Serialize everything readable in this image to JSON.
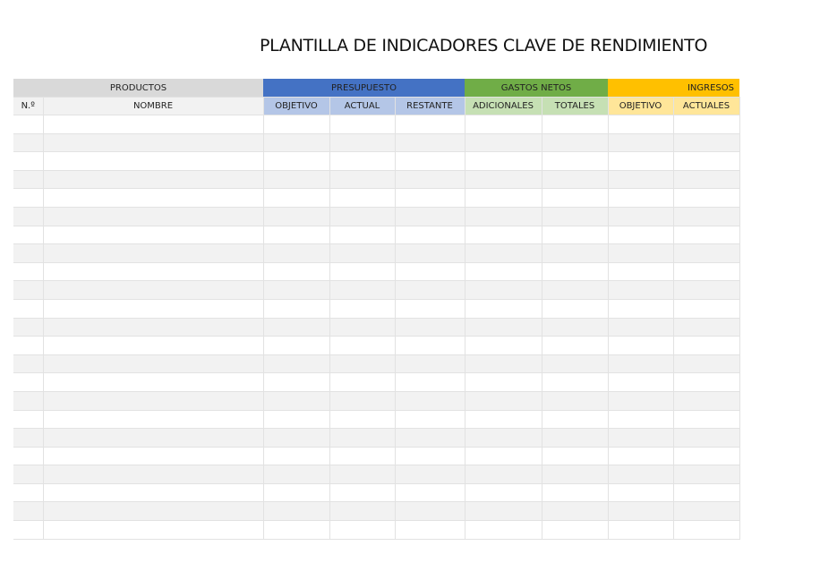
{
  "title": "PLANTILLA DE INDICADORES CLAVE DE RENDIMIENTO",
  "groups": {
    "productos": "PRODUCTOS",
    "presupuesto": "PRESUPUESTO",
    "gastos": "GASTOS NETOS",
    "ingresos": "INGRESOS"
  },
  "columns": {
    "num": "N.º",
    "nombre": "NOMBRE",
    "pres_objetivo": "OBJETIVO",
    "pres_actual": "ACTUAL",
    "pres_restante": "RESTANTE",
    "gastos_adicionales": "ADICIONALES",
    "gastos_totales": "TOTALES",
    "ing_objetivo": "OBJETIVO",
    "ing_actuales": "ACTUALES"
  },
  "colors": {
    "productos": "#d9d9d9",
    "presupuesto": "#4472c4",
    "gastos": "#70ad47",
    "ingresos": "#ffc000"
  },
  "rows": [
    [],
    [],
    [],
    [],
    [],
    [],
    [],
    [],
    [],
    [],
    [],
    [],
    [],
    [],
    [],
    [],
    [],
    [],
    [],
    [],
    [],
    [],
    []
  ]
}
